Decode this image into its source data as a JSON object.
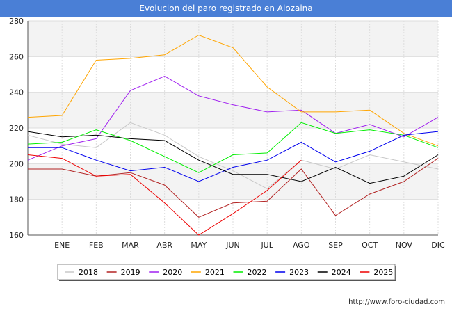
{
  "chart_data": {
    "type": "line",
    "title": "Evolucion del paro registrado en Alozaina",
    "xlabel": "",
    "ylabel": "",
    "categories": [
      "",
      "ENE",
      "FEB",
      "MAR",
      "ABR",
      "MAY",
      "JUN",
      "JUL",
      "AGO",
      "SEP",
      "OCT",
      "NOV",
      "DIC"
    ],
    "ylim": [
      160,
      280
    ],
    "yticks": [
      160,
      180,
      200,
      220,
      240,
      260,
      280
    ],
    "grid": true,
    "legend_position": "bottom",
    "source": "http://www.foro-ciudad.com",
    "series": [
      {
        "name": "2018",
        "color": "#c8c8c8",
        "values": [
          216,
          211,
          209,
          223,
          216,
          204,
          196,
          186,
          202,
          197,
          205,
          201,
          197
        ]
      },
      {
        "name": "2019",
        "color": "#b22222",
        "values": [
          197,
          197,
          193,
          195,
          188,
          170,
          178,
          179,
          197,
          171,
          183,
          190,
          203
        ]
      },
      {
        "name": "2020",
        "color": "#a020f0",
        "values": [
          202,
          210,
          214,
          241,
          249,
          238,
          233,
          229,
          230,
          217,
          222,
          215,
          226
        ]
      },
      {
        "name": "2021",
        "color": "#ffa500",
        "values": [
          226,
          227,
          258,
          259,
          261,
          272,
          265,
          243,
          229,
          229,
          230,
          217,
          210
        ]
      },
      {
        "name": "2022",
        "color": "#00ee00",
        "values": [
          211,
          212,
          219,
          213,
          204,
          195,
          205,
          206,
          223,
          217,
          219,
          216,
          209
        ]
      },
      {
        "name": "2023",
        "color": "#0000ee",
        "values": [
          209,
          209,
          202,
          196,
          198,
          190,
          198,
          202,
          212,
          201,
          207,
          216,
          218
        ]
      },
      {
        "name": "2024",
        "color": "#000000",
        "values": [
          218,
          215,
          216,
          214,
          213,
          202,
          194,
          194,
          190,
          198,
          189,
          193,
          205
        ]
      },
      {
        "name": "2025",
        "color": "#ee0000",
        "values": [
          205,
          203,
          193,
          194,
          178,
          160,
          172,
          185,
          202,
          null,
          null,
          null,
          null
        ]
      }
    ]
  }
}
